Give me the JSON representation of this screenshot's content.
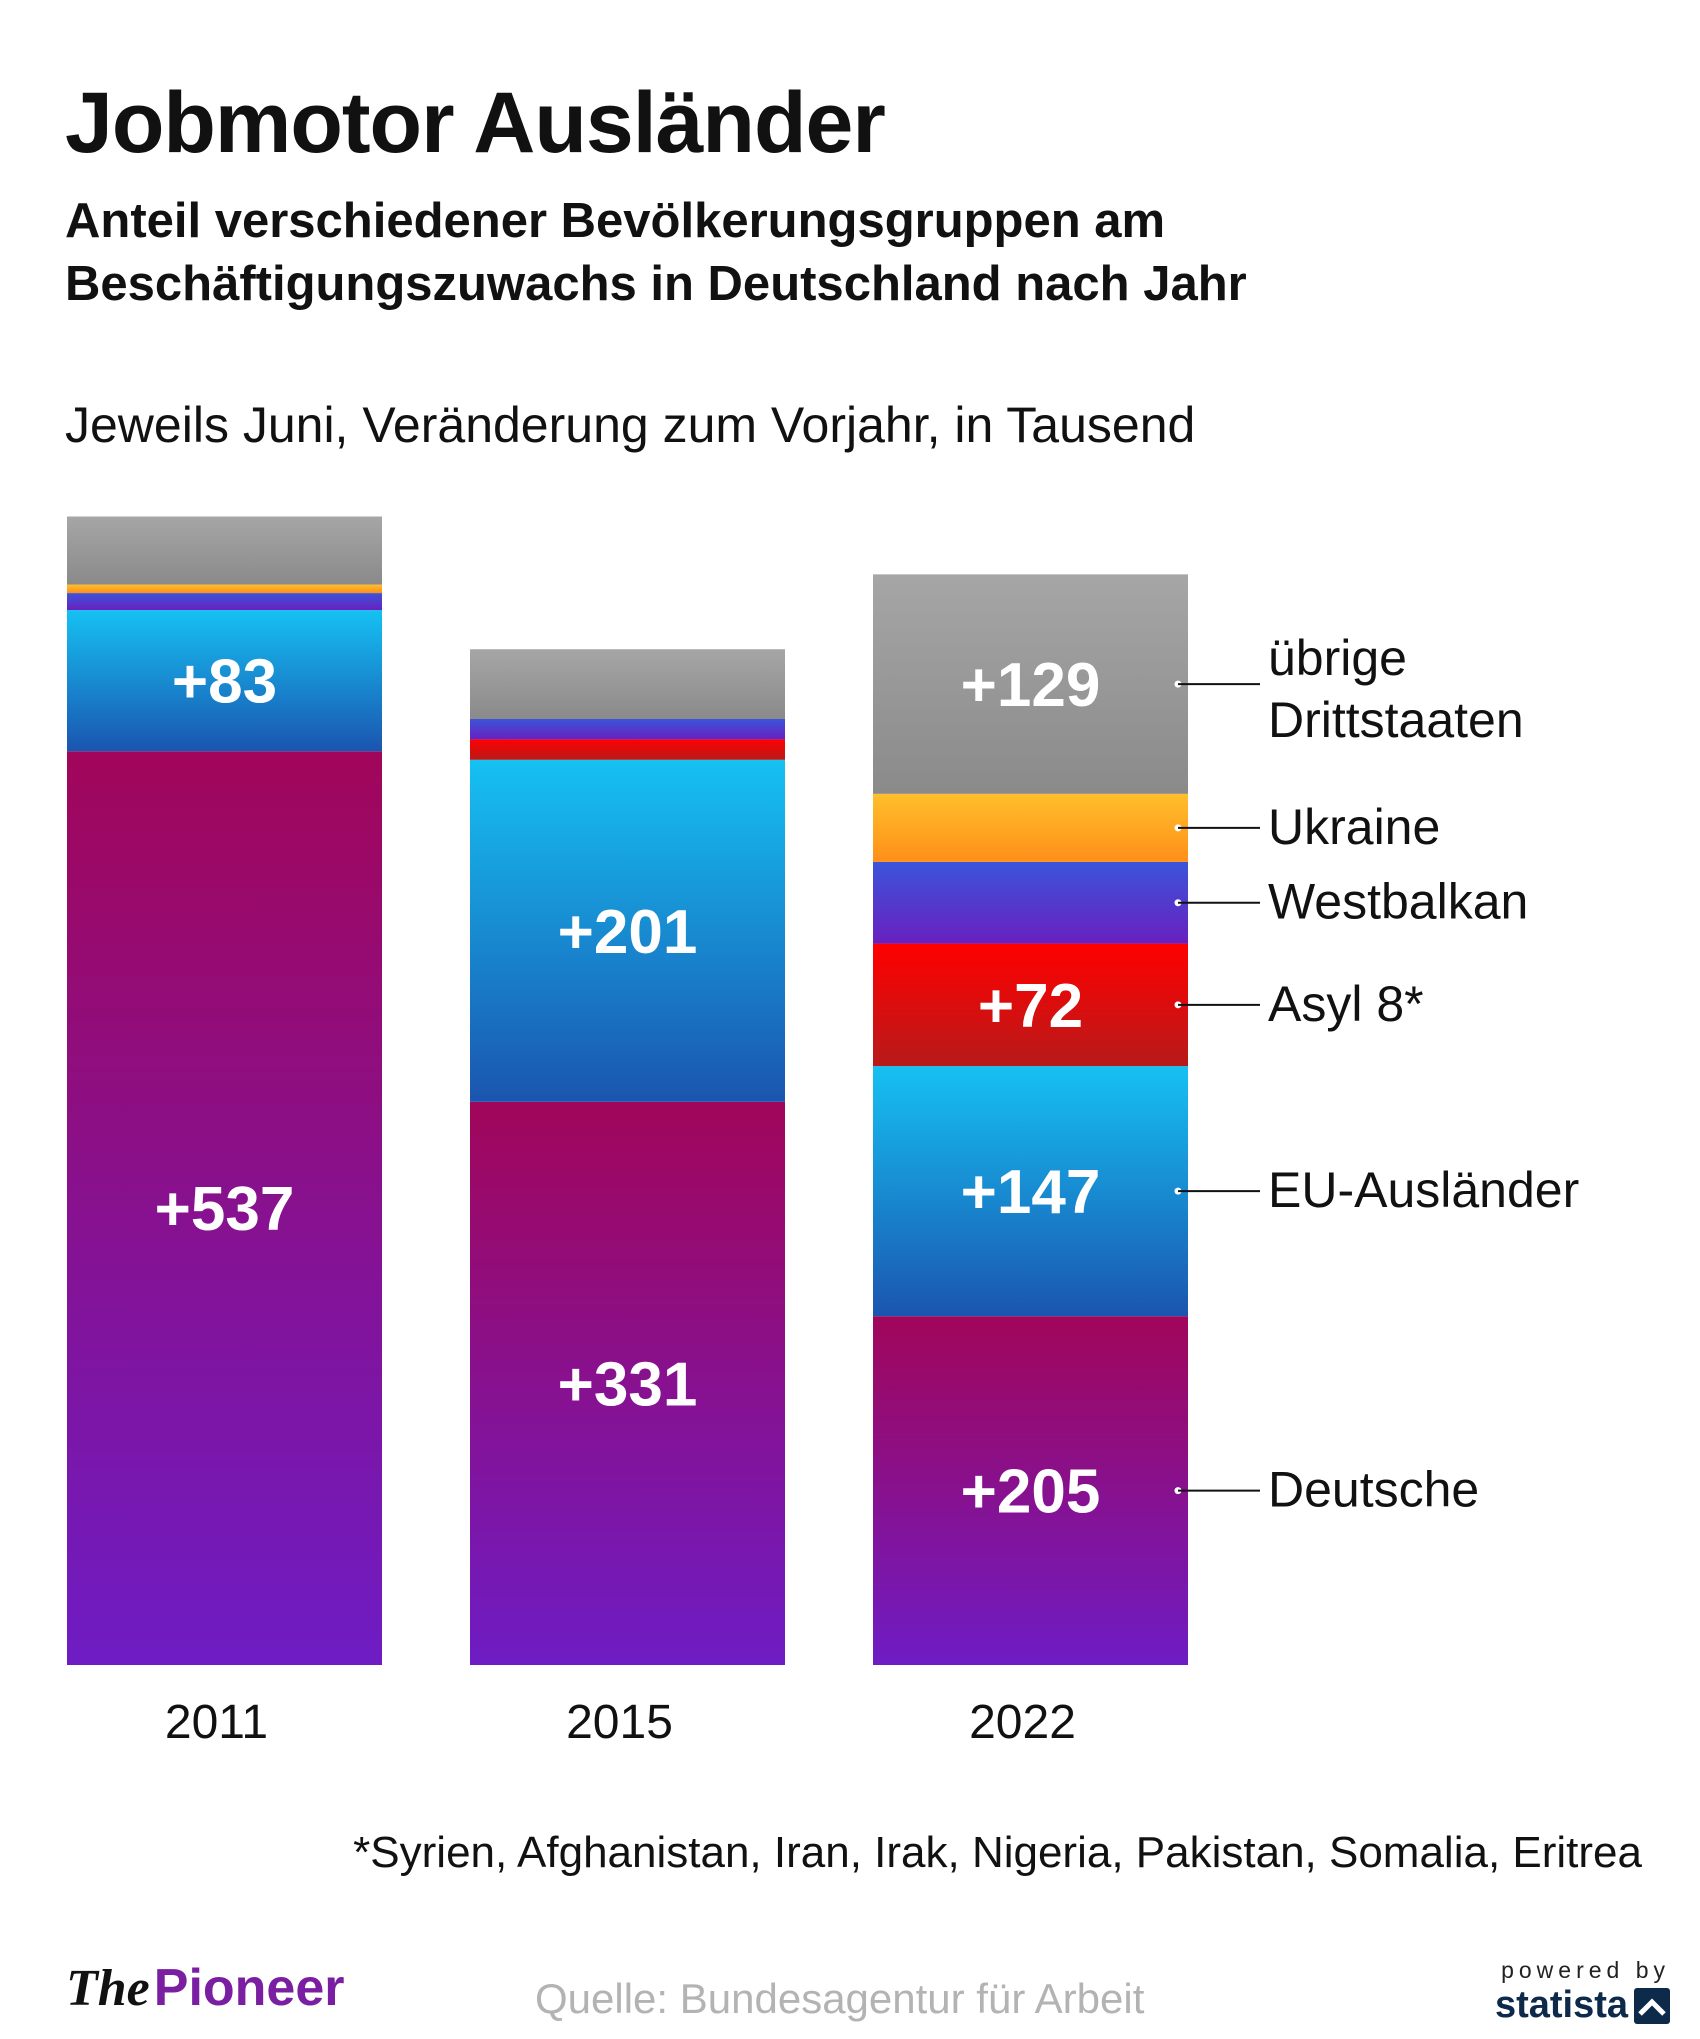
{
  "title": "Jobmotor Ausländer",
  "subtitle": "Anteil verschiedener Bevölkerungsgruppen am Beschäftigungszuwachs in Deutschland nach Jahr",
  "note": "Jeweils Juni, Veränderung zum Vorjahr, in Tausend",
  "footnote": "*Syrien, Afghanistan, Iran, Irak, Nigeria, Pakistan, Somalia, Eritrea",
  "source": "Quelle: Bundesagentur für Arbeit",
  "brand": {
    "the": "The",
    "pioneer": "Pioneer",
    "pioneer_color": "#7b1fa2"
  },
  "powered_by": {
    "label": "powered by",
    "name": "statista"
  },
  "chart_data": {
    "type": "bar",
    "stacked": true,
    "categories": [
      "2011",
      "2015",
      "2022"
    ],
    "series": [
      {
        "name": "Deutsche",
        "values": [
          537,
          331,
          205
        ],
        "labels": [
          "+537",
          "+331",
          "+205"
        ],
        "colors": [
          "#a1065a",
          "#6e1cc4"
        ]
      },
      {
        "name": "EU-Ausländer",
        "values": [
          83,
          201,
          147
        ],
        "labels": [
          "+83",
          "+201",
          "+147"
        ],
        "colors": [
          "#16c1f2",
          "#1a55b0"
        ]
      },
      {
        "name": "Asyl 8*",
        "values": [
          0,
          12,
          72
        ],
        "labels": [
          "",
          "",
          "+72"
        ],
        "colors": [
          "#ff0000",
          "#b71a1a"
        ]
      },
      {
        "name": "Westbalkan",
        "values": [
          10,
          12,
          48
        ],
        "labels": [
          "",
          "",
          ""
        ],
        "colors": [
          "#3a55d9",
          "#6a1fc0"
        ]
      },
      {
        "name": "Ukraine",
        "values": [
          5,
          0,
          40
        ],
        "labels": [
          "",
          "",
          ""
        ],
        "colors": [
          "#ffbf2b",
          "#ff8f1a"
        ]
      },
      {
        "name": "übrige Drittstaaten",
        "label_lines": [
          "übrige",
          "Drittstaaten"
        ],
        "values": [
          40,
          41,
          129
        ],
        "labels": [
          "",
          "",
          "+129"
        ],
        "colors": [
          "#a6a6a6",
          "#8a8a8a"
        ]
      }
    ],
    "ylim": [
      0,
      680
    ],
    "grid": false,
    "legend": "right"
  }
}
